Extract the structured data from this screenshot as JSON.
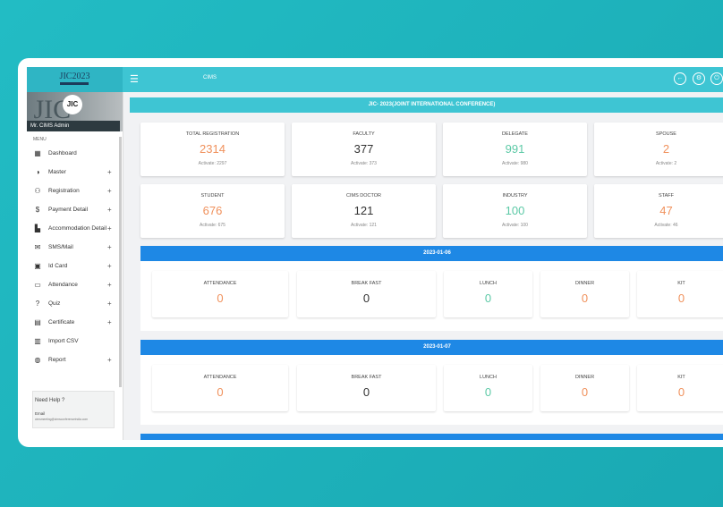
{
  "header": {
    "logo": "JIC2023",
    "page_title": "CIMS"
  },
  "sidebar": {
    "user": "Mr. CIMS Admin",
    "menu_label": "MENU",
    "items": [
      {
        "label": "Dashboard",
        "icon": "▦",
        "plus": false
      },
      {
        "label": "Master",
        "icon": "◑",
        "plus": true
      },
      {
        "label": "Registration",
        "icon": "⚇",
        "plus": true
      },
      {
        "label": "Payment Detail",
        "icon": "$",
        "plus": true
      },
      {
        "label": "Accommodation Detail",
        "icon": "▙",
        "plus": true
      },
      {
        "label": "SMS/Mail",
        "icon": "✉",
        "plus": true
      },
      {
        "label": "Id Card",
        "icon": "▣",
        "plus": true
      },
      {
        "label": "Attendance",
        "icon": "▭",
        "plus": true
      },
      {
        "label": "Quiz",
        "icon": "?",
        "plus": true
      },
      {
        "label": "Certificate",
        "icon": "▤",
        "plus": true
      },
      {
        "label": "Import CSV",
        "icon": "▥",
        "plus": false
      },
      {
        "label": "Report",
        "icon": "◍",
        "plus": true
      }
    ],
    "help_title": "Need Help ?",
    "help_email_label": "Email",
    "help_email": "cimsmeeting@cimsconferenceindia.com"
  },
  "dashboard": {
    "title": "JIC- 2023(JOINT INTERNATIONAL CONFERENCE)",
    "stats": [
      {
        "label": "TOTAL REGISTRATION",
        "value": "2314",
        "activate": "Activate: 2297",
        "tone": "orange"
      },
      {
        "label": "FACULTY",
        "value": "377",
        "activate": "Activate: 373",
        "tone": "dark"
      },
      {
        "label": "DELEGATE",
        "value": "991",
        "activate": "Activate: 980",
        "tone": "green"
      },
      {
        "label": "SPOUSE",
        "value": "2",
        "activate": "Activate: 2",
        "tone": "orange"
      },
      {
        "label": "STUDENT",
        "value": "676",
        "activate": "Activate: 675",
        "tone": "orange"
      },
      {
        "label": "CIMS DOCTOR",
        "value": "121",
        "activate": "Activate: 121",
        "tone": "dark"
      },
      {
        "label": "INDUSTRY",
        "value": "100",
        "activate": "Activate: 100",
        "tone": "green"
      },
      {
        "label": "STAFF",
        "value": "47",
        "activate": "Activate: 46",
        "tone": "orange"
      }
    ],
    "days": [
      {
        "date": "2023-01-06",
        "cards": [
          {
            "label": "ATTENDANCE",
            "value": "0",
            "tone": "orange"
          },
          {
            "label": "BREAK FAST",
            "value": "0",
            "tone": "dark"
          },
          {
            "label": "LUNCH",
            "value": "0",
            "tone": "green"
          },
          {
            "label": "DINNER",
            "value": "0",
            "tone": "orange"
          },
          {
            "label": "KIT",
            "value": "0",
            "tone": "orange"
          }
        ]
      },
      {
        "date": "2023-01-07",
        "cards": [
          {
            "label": "ATTENDANCE",
            "value": "0",
            "tone": "orange"
          },
          {
            "label": "BREAK FAST",
            "value": "0",
            "tone": "dark"
          },
          {
            "label": "LUNCH",
            "value": "0",
            "tone": "green"
          },
          {
            "label": "DINNER",
            "value": "0",
            "tone": "orange"
          },
          {
            "label": "KIT",
            "value": "0",
            "tone": "orange"
          }
        ]
      }
    ]
  }
}
